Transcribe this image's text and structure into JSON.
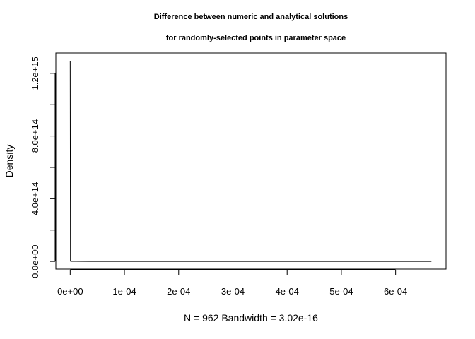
{
  "chart_data": {
    "type": "line",
    "title": [
      "Difference between numeric and analytical solutions",
      "for randomly-selected points in parameter space"
    ],
    "xlabel": "N = 962   Bandwidth = 3.02e-16",
    "ylabel": "Density",
    "xlim": [
      -2.65e-05,
      0.000693
    ],
    "ylim": [
      -49000000000000.0,
      1330000000000000.0
    ],
    "x_ticks": [
      0,
      0.0001,
      0.0002,
      0.0003,
      0.0004,
      0.0005,
      0.0006
    ],
    "x_tick_labels": [
      "0e+00",
      "1e-04",
      "2e-04",
      "3e-04",
      "4e-04",
      "5e-04",
      "6e-04"
    ],
    "y_ticks": [
      0,
      200000000000000.0,
      400000000000000.0,
      600000000000000.0,
      800000000000000.0,
      1000000000000000.0,
      1200000000000000.0
    ],
    "y_tick_labels": [
      "0.0e+00",
      "",
      "4.0e+14",
      "",
      "8.0e+14",
      "",
      "1.2e+15"
    ],
    "grid": false,
    "series": [
      {
        "x": [
          0,
          5e-07,
          1e-06,
          1e-05,
          0.0001,
          0.0002,
          0.0003,
          0.0004,
          0.0005,
          0.0006,
          0.000666
        ],
        "y": [
          1280000000000000.0,
          2000000000000.0,
          800000000000.0,
          300000000000.0,
          100000000000.0,
          50000000000.0,
          20000000000.0,
          10000000000.0,
          5000000000.0,
          2000000000.0,
          0
        ]
      }
    ],
    "colors": {
      "line": "#000000",
      "axis": "#000000",
      "background": "#ffffff"
    }
  }
}
